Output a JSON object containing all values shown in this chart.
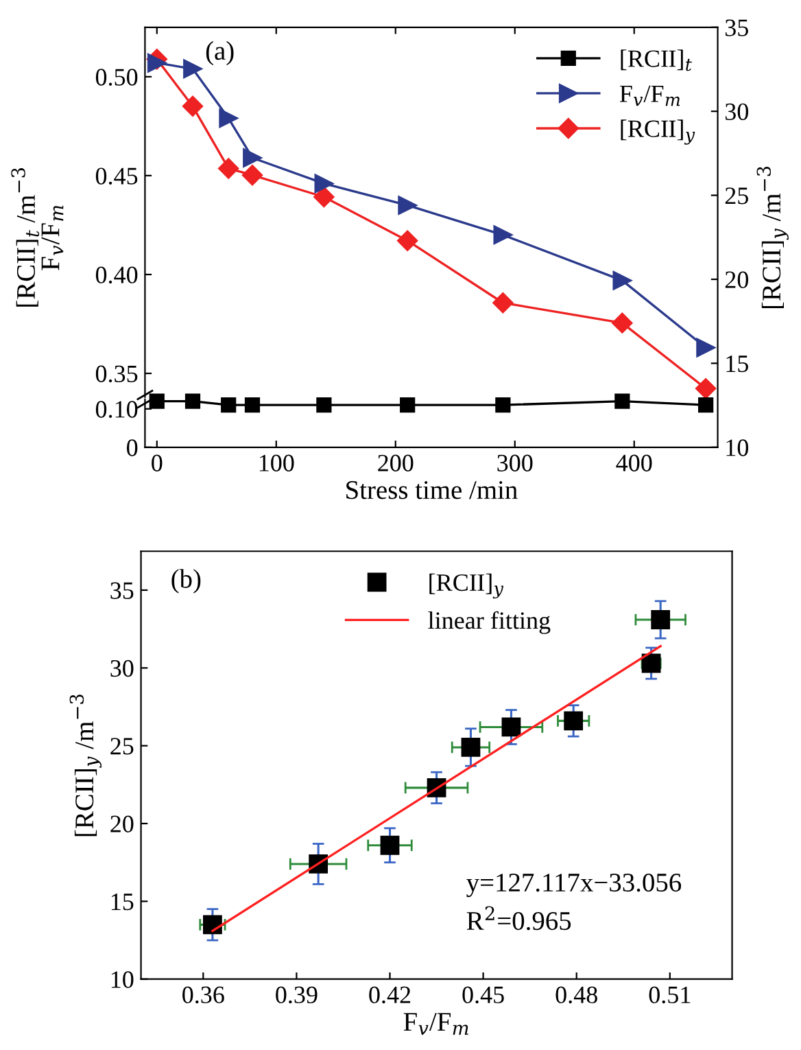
{
  "chart_data": [
    {
      "type": "line",
      "x": [
        0,
        30,
        60,
        80,
        140,
        210,
        290,
        390,
        460
      ],
      "xlim": [
        -10,
        470
      ],
      "xticks": [
        0,
        100,
        200,
        300,
        400
      ],
      "tick_labels": "y",
      "ylim": [
        0.338,
        0.525
      ],
      "yticks": [
        0.35,
        {
          "value": 0.4,
          "label": "0.40"
        },
        0.45,
        {
          "value": 0.5,
          "label": "0.50"
        }
      ],
      "y2lim": [
        10,
        35
      ],
      "y2ticks": [
        10,
        15,
        20,
        25,
        30,
        35
      ],
      "ylabel": "[RCII]$_{t}$ /m$^{−3}$\nF$_{v}$/F$_{m}$",
      "y2label": "[RCII]$_{y}$ /m$^{−3}$",
      "annotations": [
        "(a)"
      ],
      "legend": "top right",
      "series": [
        {
          "name": "F$_{v}$/F$_{m}$",
          "color": "#2b3a8c",
          "marker": "triangle",
          "values": [
            0.507,
            0.504,
            0.479,
            0.459,
            0.446,
            0.435,
            0.42,
            0.397,
            0.363
          ]
        },
        {
          "name": "[RCII]$_{y}$",
          "color": "#ee2222",
          "marker": "diamond",
          "axis": "y2",
          "values": [
            33.1,
            30.3,
            26.6,
            26.2,
            24.9,
            22.3,
            18.6,
            17.4,
            13.5
          ]
        }
      ]
    },
    {
      "type": "line",
      "x": [
        0,
        30,
        60,
        80,
        140,
        210,
        290,
        390,
        460
      ],
      "xlim": [
        -10,
        470
      ],
      "xticks": [
        0,
        100,
        200,
        300,
        400
      ],
      "ylim": [
        0,
        0.125
      ],
      "yticks": [
        0,
        {
          "value": 0.1,
          "label": "0.10"
        }
      ],
      "xlabel": "Stress time /min",
      "grid": false,
      "series": [
        {
          "name": "[RCII]$_{t}$",
          "color": "#000000",
          "marker": "square",
          "values": [
            0.12,
            0.12,
            0.11,
            0.11,
            0.11,
            0.11,
            0.11,
            0.12,
            0.11
          ]
        }
      ]
    },
    {
      "type": "scatter",
      "xlim": [
        0.34,
        0.53
      ],
      "xticks": [
        0.36,
        0.39,
        0.42,
        0.45,
        0.48,
        0.51
      ],
      "ylim": [
        10,
        37.5
      ],
      "yticks": [
        10,
        15,
        20,
        25,
        30,
        35
      ],
      "xlabel": "F$_{v}$/F$_{m}$",
      "ylabel": "[RCII]$_{y}$ /m$^{−3}$",
      "annotations": [
        "(b)",
        "y=127.117x−33.056",
        "R$^{2}$=0.965"
      ],
      "legend": "top",
      "grid": false,
      "series": [
        {
          "name": "[RCII]$_{y}$",
          "type": "scatter",
          "color": "#000000",
          "marker": "square",
          "x": [
            0.363,
            0.397,
            0.42,
            0.435,
            0.446,
            0.459,
            0.479,
            0.504,
            0.507
          ],
          "values": [
            13.5,
            17.4,
            18.6,
            22.3,
            24.9,
            26.2,
            26.6,
            30.3,
            33.1
          ],
          "errors": [
            1.0,
            1.3,
            1.1,
            1.0,
            1.2,
            1.1,
            1.0,
            1.0,
            1.2
          ],
          "xerrors": [
            0.004,
            0.009,
            0.007,
            0.01,
            0.006,
            0.01,
            0.005,
            0.003,
            0.008
          ]
        },
        {
          "name": "linear fitting",
          "type": "line",
          "color": "#ff2020",
          "marker": "none",
          "x": [
            0.363,
            0.507
          ],
          "values": [
            13.1,
            31.4
          ]
        }
      ]
    }
  ]
}
